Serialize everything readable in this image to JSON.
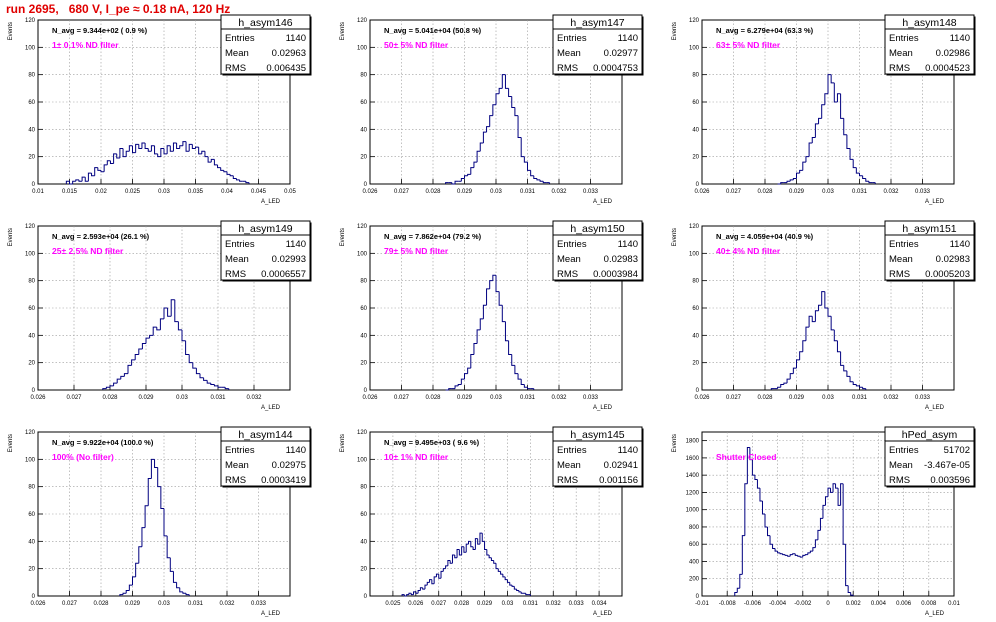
{
  "page": {
    "title": "run 2695,   680 V, I_pe ≈ 0.18 nA, 120 Hz"
  },
  "chart_data": [
    {
      "type": "bar",
      "name": "h_asym146",
      "ylabel": "Events",
      "xlabel": "A_LED",
      "xlim": [
        0.01,
        0.05
      ],
      "ylim": [
        0,
        120
      ],
      "xticks": [
        "0.01",
        "0.015",
        "0.02",
        "0.025",
        "0.03",
        "0.035",
        "0.04",
        "0.045",
        "0.05"
      ],
      "yticks": [
        "0",
        "20",
        "40",
        "60",
        "80",
        "100",
        "120"
      ],
      "stats": {
        "entries": "1140",
        "mean": "0.02963",
        "rms": "0.006435"
      },
      "navg_text": "N_avg = 9.344e+02 ( 0.9 %)",
      "filter_text": "1± 0.1% ND filter",
      "bin_start": 0.0145,
      "bin_width": 0.0005,
      "values": [
        2,
        0,
        2,
        3,
        2,
        5,
        2,
        8,
        6,
        12,
        10,
        9,
        14,
        17,
        15,
        22,
        19,
        26,
        20,
        24,
        28,
        23,
        29,
        26,
        30,
        26,
        24,
        28,
        22,
        20,
        26,
        22,
        28,
        24,
        30,
        26,
        28,
        31,
        24,
        29,
        26,
        27,
        22,
        24,
        20,
        16,
        18,
        14,
        12,
        10,
        9,
        7,
        6,
        4,
        3,
        2,
        2,
        1
      ]
    },
    {
      "type": "bar",
      "name": "h_asym147",
      "ylabel": "Events",
      "xlabel": "A_LED",
      "xlim": [
        0.026,
        0.034
      ],
      "ylim": [
        0,
        120
      ],
      "xticks": [
        "0.026",
        "0.027",
        "0.028",
        "0.029",
        "0.03",
        "0.031",
        "0.032",
        "0.033"
      ],
      "yticks": [
        "0",
        "20",
        "40",
        "60",
        "80",
        "100",
        "120"
      ],
      "stats": {
        "entries": "1140",
        "mean": "0.02977",
        "rms": "0.0004753"
      },
      "navg_text": "N_avg = 5.041e+04 (50.8 %)",
      "filter_text": "50± 5% ND filter",
      "bin_start": 0.0284,
      "bin_width": 0.0001,
      "values": [
        1,
        1,
        0,
        2,
        2,
        4,
        6,
        7,
        12,
        16,
        24,
        30,
        38,
        42,
        50,
        58,
        66,
        70,
        80,
        70,
        64,
        56,
        50,
        34,
        20,
        16,
        10,
        6,
        4,
        3,
        2,
        1,
        1
      ]
    },
    {
      "type": "bar",
      "name": "h_asym148",
      "ylabel": "Events",
      "xlabel": "A_LED",
      "xlim": [
        0.026,
        0.034
      ],
      "ylim": [
        0,
        120
      ],
      "xticks": [
        "0.026",
        "0.027",
        "0.028",
        "0.029",
        "0.03",
        "0.031",
        "0.032",
        "0.033"
      ],
      "yticks": [
        "0",
        "20",
        "40",
        "60",
        "80",
        "100",
        "120"
      ],
      "stats": {
        "entries": "1140",
        "mean": "0.02986",
        "rms": "0.0004523"
      },
      "navg_text": "N_avg = 6.279e+04 (63.3 %)",
      "filter_text": "63± 5% ND filter",
      "bin_start": 0.0284,
      "bin_width": 0.0001,
      "values": [
        0,
        1,
        1,
        2,
        3,
        4,
        8,
        10,
        16,
        20,
        30,
        34,
        44,
        48,
        58,
        66,
        80,
        74,
        60,
        66,
        48,
        36,
        26,
        18,
        12,
        8,
        6,
        4,
        2,
        1,
        1
      ]
    },
    {
      "type": "bar",
      "name": "h_asym149",
      "ylabel": "Events",
      "xlabel": "A_LED",
      "xlim": [
        0.026,
        0.033
      ],
      "ylim": [
        0,
        120
      ],
      "xticks": [
        "0.026",
        "0.027",
        "0.028",
        "0.029",
        "0.03",
        "0.031",
        "0.032"
      ],
      "yticks": [
        "0",
        "20",
        "40",
        "60",
        "80",
        "100",
        "120"
      ],
      "stats": {
        "entries": "1140",
        "mean": "0.02993",
        "rms": "0.0006557"
      },
      "navg_text": "N_avg = 2.593e+04 (26.1 %)",
      "filter_text": "25± 2.5% ND filter",
      "bin_start": 0.0278,
      "bin_width": 0.0001,
      "values": [
        1,
        2,
        3,
        5,
        8,
        10,
        12,
        18,
        22,
        26,
        30,
        34,
        38,
        40,
        46,
        44,
        52,
        60,
        54,
        66,
        50,
        44,
        36,
        26,
        20,
        16,
        12,
        9,
        7,
        5,
        4,
        3,
        2,
        2,
        1
      ]
    },
    {
      "type": "bar",
      "name": "h_asym150",
      "ylabel": "Events",
      "xlabel": "A_LED",
      "xlim": [
        0.026,
        0.034
      ],
      "ylim": [
        0,
        120
      ],
      "xticks": [
        "0.026",
        "0.027",
        "0.028",
        "0.029",
        "0.03",
        "0.031",
        "0.032",
        "0.033"
      ],
      "yticks": [
        "0",
        "20",
        "40",
        "60",
        "80",
        "100",
        "120"
      ],
      "stats": {
        "entries": "1140",
        "mean": "0.02983",
        "rms": "0.0003984"
      },
      "navg_text": "N_avg = 7.862e+04 (79.2 %)",
      "filter_text": "79± 5% ND filter",
      "bin_start": 0.0284,
      "bin_width": 0.0001,
      "values": [
        0,
        1,
        1,
        3,
        4,
        8,
        12,
        16,
        26,
        34,
        44,
        52,
        62,
        74,
        80,
        84,
        72,
        62,
        50,
        36,
        26,
        18,
        12,
        8,
        4,
        2,
        1,
        1
      ]
    },
    {
      "type": "bar",
      "name": "h_asym151",
      "ylabel": "Events",
      "xlabel": "A_LED",
      "xlim": [
        0.026,
        0.034
      ],
      "ylim": [
        0,
        120
      ],
      "xticks": [
        "0.026",
        "0.027",
        "0.028",
        "0.029",
        "0.03",
        "0.031",
        "0.032",
        "0.033"
      ],
      "yticks": [
        "0",
        "20",
        "40",
        "60",
        "80",
        "100",
        "120"
      ],
      "stats": {
        "entries": "1140",
        "mean": "0.02983",
        "rms": "0.0005203"
      },
      "navg_text": "N_avg = 4.059e+04 (40.9 %)",
      "filter_text": "40± 4% ND filter",
      "bin_start": 0.0282,
      "bin_width": 0.0001,
      "values": [
        1,
        1,
        2,
        4,
        5,
        8,
        12,
        16,
        22,
        28,
        36,
        46,
        54,
        50,
        58,
        62,
        72,
        60,
        54,
        44,
        36,
        28,
        18,
        14,
        10,
        6,
        4,
        3,
        2,
        1
      ]
    },
    {
      "type": "bar",
      "name": "h_asym144",
      "ylabel": "Events",
      "xlabel": "A_LED",
      "xlim": [
        0.026,
        0.034
      ],
      "ylim": [
        0,
        120
      ],
      "xticks": [
        "0.026",
        "0.027",
        "0.028",
        "0.029",
        "0.03",
        "0.031",
        "0.032",
        "0.033"
      ],
      "yticks": [
        "0",
        "20",
        "40",
        "60",
        "80",
        "100",
        "120"
      ],
      "stats": {
        "entries": "1140",
        "mean": "0.02975",
        "rms": "0.0003419"
      },
      "navg_text": "N_avg = 9.922e+04 (100.0 %)",
      "filter_text": "100% (No filter)",
      "bin_start": 0.0286,
      "bin_width": 0.0001,
      "values": [
        1,
        2,
        4,
        8,
        14,
        24,
        36,
        50,
        66,
        86,
        100,
        94,
        80,
        64,
        44,
        28,
        18,
        10,
        6,
        3,
        2,
        1
      ]
    },
    {
      "type": "bar",
      "name": "h_asym145",
      "ylabel": "Events",
      "xlabel": "A_LED",
      "xlim": [
        0.024,
        0.035
      ],
      "ylim": [
        0,
        120
      ],
      "xticks": [
        "0.025",
        "0.026",
        "0.027",
        "0.028",
        "0.029",
        "0.03",
        "0.031",
        "0.032",
        "0.033",
        "0.034"
      ],
      "yticks": [
        "0",
        "20",
        "40",
        "60",
        "80",
        "100",
        "120"
      ],
      "stats": {
        "entries": "1140",
        "mean": "0.02941",
        "rms": "0.001156"
      },
      "navg_text": "N_avg = 9.495e+03 ( 9.6 %)",
      "filter_text": "10± 1% ND filter",
      "bin_start": 0.0254,
      "bin_width": 0.0001,
      "values": [
        1,
        0,
        1,
        2,
        1,
        3,
        2,
        4,
        6,
        5,
        8,
        10,
        12,
        9,
        14,
        16,
        13,
        18,
        20,
        22,
        26,
        24,
        30,
        28,
        34,
        30,
        36,
        32,
        38,
        40,
        36,
        34,
        42,
        38,
        46,
        40,
        34,
        30,
        28,
        26,
        24,
        20,
        18,
        16,
        14,
        12,
        10,
        8,
        7,
        5,
        4,
        3,
        2,
        2,
        1,
        1
      ]
    },
    {
      "type": "bar",
      "name": "hPed_asym",
      "ylabel": "Events",
      "xlabel": "A_LED",
      "xlim": [
        -0.01,
        0.01
      ],
      "ylim": [
        0,
        1900
      ],
      "xticks": [
        "-0.01",
        "-0.008",
        "-0.006",
        "-0.004",
        "-0.002",
        "0",
        "0.002",
        "0.004",
        "0.006",
        "0.008",
        "0.01"
      ],
      "yticks": [
        "0",
        "200",
        "400",
        "600",
        "800",
        "1000",
        "1200",
        "1400",
        "1600",
        "1800"
      ],
      "stats": {
        "entries": "51702",
        "mean": "-3.467e-05",
        "rms": "0.003596"
      },
      "navg_text": "",
      "filter_text": "Shutter Closed",
      "bin_start": -0.0074,
      "bin_width": 0.0002,
      "values": [
        40,
        90,
        250,
        700,
        1300,
        1720,
        1580,
        1400,
        1350,
        1250,
        1100,
        950,
        800,
        700,
        600,
        550,
        520,
        500,
        490,
        480,
        470,
        460,
        480,
        490,
        470,
        460,
        450,
        470,
        480,
        500,
        520,
        560,
        650,
        760,
        900,
        1050,
        1150,
        1250,
        1200,
        1300,
        1250,
        1050,
        1300,
        600,
        120,
        40,
        10
      ]
    }
  ]
}
